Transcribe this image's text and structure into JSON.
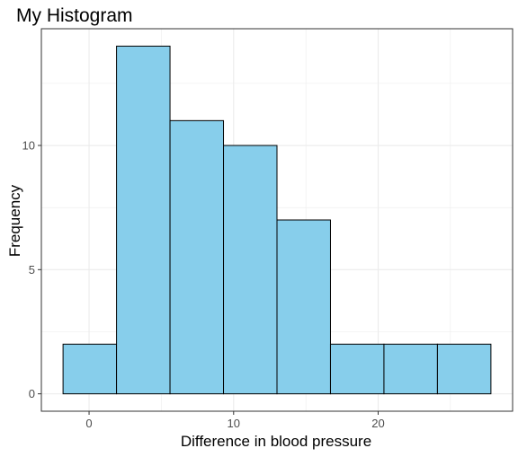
{
  "chart_data": {
    "type": "bar",
    "title": "My Histogram",
    "xlabel": "Difference in blood pressure",
    "ylabel": "Frequency",
    "bins": [
      {
        "start": -1.8,
        "end": 1.9,
        "count": 2
      },
      {
        "start": 1.9,
        "end": 5.6,
        "count": 14
      },
      {
        "start": 5.6,
        "end": 9.3,
        "count": 11
      },
      {
        "start": 9.3,
        "end": 13.0,
        "count": 10
      },
      {
        "start": 13.0,
        "end": 16.7,
        "count": 7
      },
      {
        "start": 16.7,
        "end": 20.4,
        "count": 2
      },
      {
        "start": 20.4,
        "end": 24.1,
        "count": 2
      },
      {
        "start": 24.1,
        "end": 27.8,
        "count": 2
      }
    ],
    "xlim": [
      -3.3,
      29.3
    ],
    "ylim": [
      -0.7,
      14.7
    ],
    "xticks": [
      0,
      10,
      20
    ],
    "yticks": [
      0,
      5,
      10
    ],
    "grid": true,
    "colors": {
      "bar_fill": "#87CEEB",
      "bar_stroke": "#000000",
      "grid": "#EBEBEB",
      "panel_border": "#333333",
      "tick_label": "#4D4D4D",
      "text": "#000000"
    }
  }
}
